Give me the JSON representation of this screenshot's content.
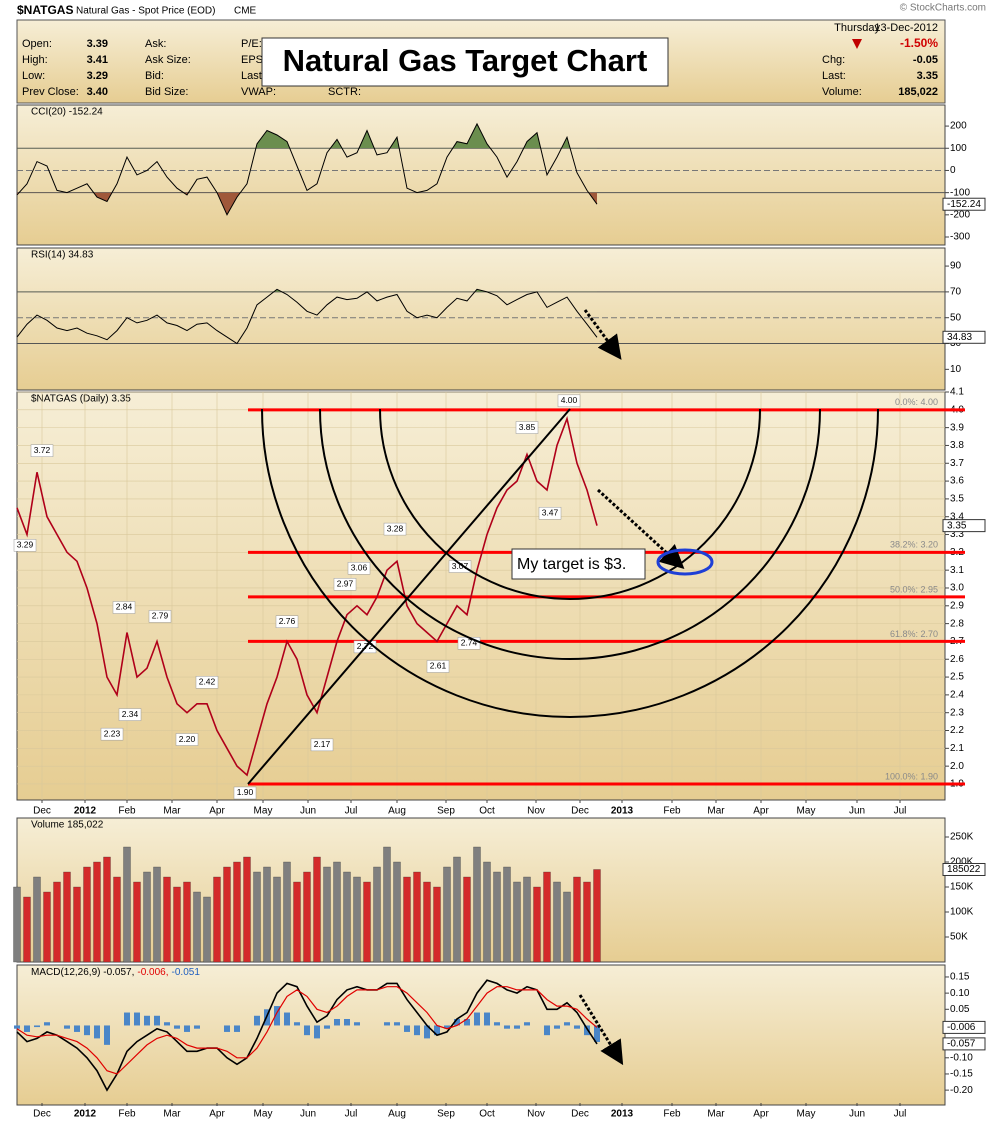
{
  "header": {
    "symbol": "$NATGAS",
    "name": "Natural Gas - Spot Price (EOD)",
    "exchange": "CME",
    "copyright": "© StockCharts.com",
    "day": "Thursday",
    "date": "13-Dec-2012",
    "change_pct": "-1.50%",
    "quote": [
      {
        "label": "Open:",
        "value": "3.39"
      },
      {
        "label": "High:",
        "value": "3.41"
      },
      {
        "label": "Low:",
        "value": "3.29"
      },
      {
        "label": "Prev Close:",
        "value": "3.40"
      }
    ],
    "col2": [
      "Ask:",
      "Ask Size:",
      "Bid:",
      "Bid Size:"
    ],
    "col3": [
      "P/E:",
      "EPS:",
      "Last",
      "VWAP:"
    ],
    "col4": "SCTR:",
    "right": [
      {
        "label": "Chg:",
        "value": "-0.05"
      },
      {
        "label": "Last:",
        "value": "3.35"
      },
      {
        "label": "Volume:",
        "value": "185,022"
      }
    ]
  },
  "title": "Natural Gas Target Chart",
  "annotation": "My target is $3.",
  "chart_data": [
    {
      "type": "line",
      "label": "CCI(20) -152.24",
      "ylim": [
        -336,
        295
      ],
      "yticks": [
        200,
        100,
        0,
        -100,
        -200,
        -300
      ],
      "levels": [
        100,
        -100
      ],
      "midline": 0,
      "above_color": "#6b8e4e",
      "below_color": "#a0583a",
      "color": "#000000",
      "values": [
        -110,
        -60,
        40,
        20,
        -90,
        -100,
        -80,
        -60,
        -120,
        -140,
        -60,
        60,
        -20,
        0,
        40,
        -30,
        -80,
        -110,
        -40,
        -30,
        -100,
        -200,
        -120,
        -60,
        120,
        180,
        160,
        130,
        20,
        -90,
        -60,
        80,
        140,
        60,
        80,
        180,
        70,
        80,
        150,
        -80,
        -100,
        -90,
        -60,
        60,
        130,
        120,
        210,
        120,
        60,
        -30,
        40,
        130,
        170,
        -20,
        60,
        150,
        -10,
        -90,
        -152.24
      ]
    },
    {
      "type": "line",
      "label": "RSI(14) 34.83",
      "ylim": [
        -6,
        104
      ],
      "yticks": [
        90,
        70,
        50,
        30,
        10
      ],
      "levels": [
        70,
        30
      ],
      "midline": 50,
      "above_color": "#6b8e4e",
      "below_color": "#a0583a",
      "color": "#000000",
      "values": [
        35,
        45,
        52,
        48,
        42,
        40,
        42,
        38,
        36,
        33,
        40,
        50,
        46,
        48,
        52,
        46,
        44,
        40,
        45,
        46,
        40,
        35,
        30,
        42,
        60,
        66,
        72,
        68,
        62,
        55,
        52,
        60,
        66,
        64,
        65,
        70,
        63,
        66,
        68,
        55,
        50,
        52,
        50,
        58,
        65,
        63,
        72,
        70,
        67,
        60,
        64,
        68,
        70,
        58,
        62,
        66,
        55,
        45,
        34.83
      ]
    },
    {
      "type": "line",
      "label": "$NATGAS (Daily) 3.35",
      "xlim": [
        0,
        92.8
      ],
      "xticks": [
        {
          "value": 2.5,
          "label": "Dec"
        },
        {
          "value": 6.8,
          "label": "2012"
        },
        {
          "value": 11,
          "label": "Feb"
        },
        {
          "value": 15.5,
          "label": "Mar"
        },
        {
          "value": 20,
          "label": "Apr"
        },
        {
          "value": 24.6,
          "label": "May"
        },
        {
          "value": 29.1,
          "label": "Jun"
        },
        {
          "value": 33.4,
          "label": "Jul"
        },
        {
          "value": 38,
          "label": "Aug"
        },
        {
          "value": 42.9,
          "label": "Sep"
        },
        {
          "value": 47,
          "label": "Oct"
        },
        {
          "value": 51.9,
          "label": "Nov"
        },
        {
          "value": 56.3,
          "label": "Dec"
        },
        {
          "value": 60.5,
          "label": "2013"
        },
        {
          "value": 65.5,
          "label": "Feb"
        },
        {
          "value": 69.9,
          "label": "Mar"
        },
        {
          "value": 74.4,
          "label": "Apr"
        },
        {
          "value": 78.9,
          "label": "May"
        },
        {
          "value": 84,
          "label": "Jun"
        },
        {
          "value": 88.3,
          "label": "Jul"
        }
      ],
      "ylim": [
        1.81,
        4.1
      ],
      "yticks": [
        4.1,
        {
          "value": 4,
          "label": "4.0"
        },
        3.9,
        3.8,
        3.7,
        3.6,
        3.5,
        3.4,
        3.3,
        3.2,
        3.1,
        {
          "value": 3,
          "label": "3.0"
        },
        2.9,
        2.8,
        2.7,
        2.6,
        2.5,
        2.4,
        2.3,
        2.2,
        2.1,
        {
          "value": 2,
          "label": "2.0"
        },
        1.9
      ],
      "grid": true,
      "color": "#b0001a",
      "values": [
        3.45,
        3.3,
        3.65,
        3.4,
        3.3,
        3.2,
        3.15,
        3.0,
        2.8,
        2.5,
        2.4,
        2.75,
        2.5,
        2.55,
        2.7,
        2.5,
        2.35,
        2.3,
        2.35,
        2.35,
        2.2,
        2.1,
        2.0,
        1.95,
        2.15,
        2.35,
        2.5,
        2.7,
        2.6,
        2.4,
        2.3,
        2.5,
        2.7,
        2.85,
        2.9,
        2.85,
        2.95,
        3.1,
        3.15,
        2.9,
        2.8,
        2.75,
        2.7,
        2.8,
        2.9,
        2.85,
        3.1,
        3.3,
        3.45,
        3.55,
        3.6,
        3.75,
        3.6,
        3.55,
        3.8,
        3.95,
        3.7,
        3.55,
        3.35
      ],
      "point_labels": [
        {
          "x": 2.5,
          "value": 3.72
        },
        {
          "x": 0.8,
          "value": 3.29
        },
        {
          "x": 10.7,
          "value": 2.84
        },
        {
          "x": 11.3,
          "value": 2.34
        },
        {
          "x": 9.5,
          "value": 2.23
        },
        {
          "x": 14.3,
          "value": 2.79
        },
        {
          "x": 17,
          "value": 2.2
        },
        {
          "x": 19,
          "value": 2.42
        },
        {
          "x": 22.8,
          "value": 1.9
        },
        {
          "x": 27,
          "value": 2.76
        },
        {
          "x": 30.5,
          "value": 2.17
        },
        {
          "x": 32.8,
          "value": 2.97
        },
        {
          "x": 34.2,
          "value": 3.06
        },
        {
          "x": 34.8,
          "value": 2.72
        },
        {
          "x": 37.8,
          "value": 3.28
        },
        {
          "x": 44.3,
          "value": 3.07
        },
        {
          "x": 45.2,
          "value": 2.74
        },
        {
          "x": 42.1,
          "value": 2.61
        },
        {
          "x": 51,
          "value": 3.85
        },
        {
          "x": 53.3,
          "value": 3.47
        },
        {
          "x": 55.2,
          "value": 4
        }
      ],
      "point_value_labels": [
        "3.72",
        "3.29",
        "2.84",
        "2.34",
        "2.23",
        "2.79",
        "2.20",
        "2.42",
        "1.90",
        "2.76",
        "2.17",
        "2.97",
        "3.06",
        "2.72",
        "3.28",
        "3.07",
        "2.74",
        "2.61",
        "3.85",
        "3.47",
        "4.00"
      ],
      "fib_color": "#ff0000",
      "fib_levels": [
        {
          "value": 4,
          "label": "0.0%: 4.00"
        },
        {
          "value": 3.2,
          "label": "38.2%: 3.20"
        },
        {
          "value": 2.95,
          "label": "50.0%: 2.95"
        },
        {
          "value": 2.7,
          "label": "61.8%: 2.70"
        },
        {
          "value": 1.9,
          "label": "100.0%: 1.90"
        }
      ]
    },
    {
      "type": "bar",
      "label": "Volume 185,022",
      "ylim": [
        0,
        288000
      ],
      "yticks": [
        {
          "value": 250000,
          "label": "250K"
        },
        {
          "value": 200000,
          "label": "200K"
        },
        {
          "value": 150000,
          "label": "150K"
        },
        {
          "value": 100000,
          "label": "100K"
        },
        {
          "value": 50000,
          "label": "50K"
        }
      ],
      "up_color": "#7f7f7f",
      "down_color": "#d42a2a",
      "values": [
        150000,
        130000,
        170000,
        140000,
        160000,
        180000,
        150000,
        190000,
        200000,
        210000,
        170000,
        230000,
        160000,
        180000,
        190000,
        170000,
        150000,
        160000,
        140000,
        130000,
        170000,
        190000,
        200000,
        210000,
        180000,
        190000,
        170000,
        200000,
        160000,
        180000,
        210000,
        190000,
        200000,
        180000,
        170000,
        160000,
        190000,
        230000,
        200000,
        170000,
        180000,
        160000,
        150000,
        190000,
        210000,
        170000,
        230000,
        200000,
        180000,
        190000,
        160000,
        170000,
        150000,
        180000,
        160000,
        140000,
        170000,
        160000,
        185022
      ]
    },
    {
      "type": "macd",
      "label_parts": [
        {
          "text": "MACD(12,26,9) -0.057,",
          "color": "#000000"
        },
        {
          "text": "-0.006,",
          "color": "#e00000"
        },
        {
          "text": "-0.051",
          "color": "#1f5fbf"
        }
      ],
      "ylim": [
        -0.246,
        0.187
      ],
      "yticks": [
        0.15,
        {
          "value": 0.1,
          "label": "0.10"
        },
        0.05,
        {
          "value": 0,
          "label": "0.00"
        },
        -0.05,
        {
          "value": -0.1,
          "label": "-0.10"
        },
        -0.15,
        {
          "value": -0.2,
          "label": "-0.20"
        }
      ],
      "series": [
        {
          "color": "#000000",
          "values": [
            -0.02,
            -0.05,
            -0.04,
            -0.02,
            -0.03,
            -0.05,
            -0.07,
            -0.1,
            -0.14,
            -0.2,
            -0.15,
            -0.08,
            -0.05,
            -0.03,
            -0.01,
            -0.02,
            -0.05,
            -0.08,
            -0.08,
            -0.07,
            -0.07,
            -0.1,
            -0.12,
            -0.1,
            -0.04,
            0.03,
            0.1,
            0.13,
            0.12,
            0.06,
            0.01,
            0.03,
            0.08,
            0.11,
            0.12,
            0.11,
            0.11,
            0.13,
            0.13,
            0.08,
            0.04,
            0.0,
            -0.03,
            -0.02,
            0.02,
            0.04,
            0.1,
            0.14,
            0.13,
            0.11,
            0.1,
            0.12,
            0.11,
            0.05,
            0.05,
            0.07,
            0.04,
            -0.01,
            -0.057
          ]
        },
        {
          "color": "#e00000",
          "values": [
            -0.01,
            -0.03,
            -0.035,
            -0.03,
            -0.03,
            -0.04,
            -0.05,
            -0.07,
            -0.1,
            -0.14,
            -0.15,
            -0.12,
            -0.09,
            -0.06,
            -0.04,
            -0.03,
            -0.04,
            -0.06,
            -0.07,
            -0.07,
            -0.07,
            -0.08,
            -0.1,
            -0.1,
            -0.07,
            -0.02,
            0.04,
            0.09,
            0.11,
            0.09,
            0.05,
            0.04,
            0.06,
            0.09,
            0.11,
            0.11,
            0.11,
            0.12,
            0.12,
            0.1,
            0.07,
            0.04,
            0.0,
            -0.01,
            0.0,
            0.02,
            0.06,
            0.1,
            0.12,
            0.12,
            0.11,
            0.11,
            0.11,
            0.08,
            0.06,
            0.06,
            0.05,
            0.02,
            -0.006
          ]
        },
        {
          "type": "bar",
          "color": "#4a86c8",
          "values": [
            -0.01,
            -0.02,
            -0.005,
            0.01,
            0,
            -0.01,
            -0.02,
            -0.03,
            -0.04,
            -0.06,
            0,
            0.04,
            0.04,
            0.03,
            0.03,
            0.01,
            -0.01,
            -0.02,
            -0.01,
            0,
            0,
            -0.02,
            -0.02,
            0,
            0.03,
            0.05,
            0.06,
            0.04,
            0.01,
            -0.03,
            -0.04,
            -0.01,
            0.02,
            0.02,
            0.01,
            0,
            0,
            0.01,
            0.01,
            -0.02,
            -0.03,
            -0.04,
            -0.03,
            -0.01,
            0.02,
            0.02,
            0.04,
            0.04,
            0.01,
            -0.01,
            -0.01,
            0.01,
            0,
            -0.03,
            -0.01,
            0.01,
            -0.01,
            -0.03,
            -0.051
          ]
        }
      ]
    }
  ]
}
